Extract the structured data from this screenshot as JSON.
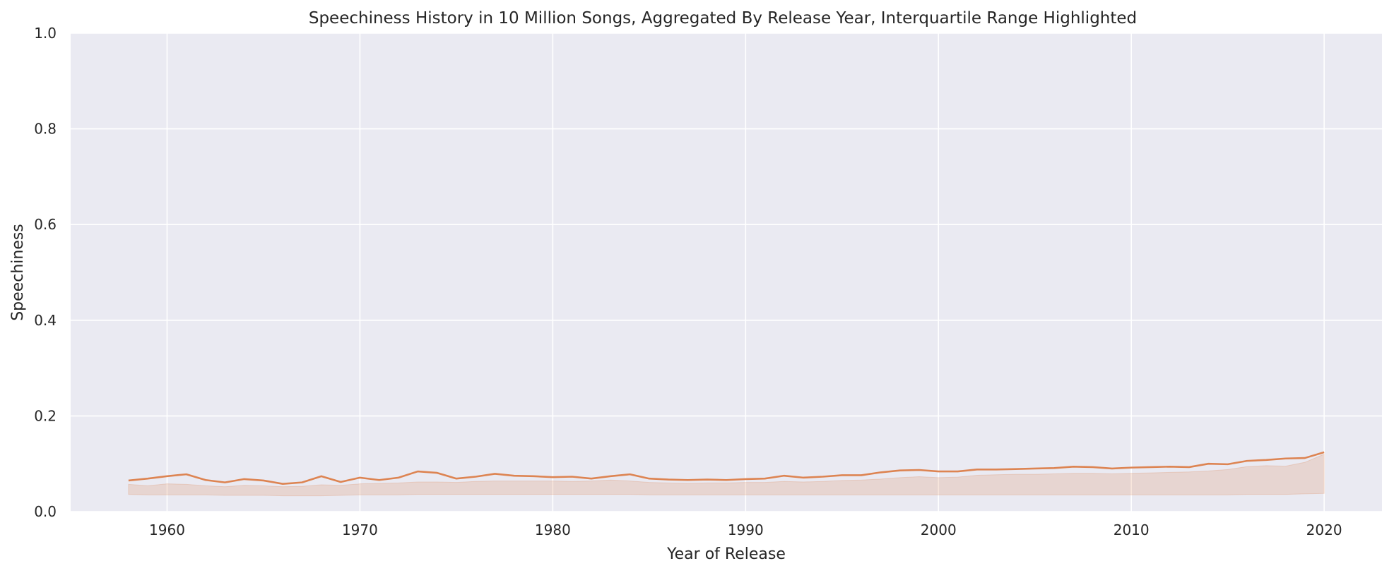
{
  "chart_data": {
    "type": "line",
    "title": "Speechiness History in 10 Million Songs, Aggregated By Release Year, Interquartile Range Highlighted",
    "xlabel": "Year of Release",
    "ylabel": "Speechiness",
    "xlim": [
      1955,
      2023
    ],
    "ylim": [
      0,
      1.0
    ],
    "xticks": [
      1960,
      1970,
      1980,
      1990,
      2000,
      2010,
      2020
    ],
    "xtick_labels": [
      "1960",
      "1970",
      "1980",
      "1990",
      "2000",
      "2010",
      "2020"
    ],
    "yticks": [
      0,
      0.2,
      0.4,
      0.6,
      0.8,
      1.0
    ],
    "ytick_labels": [
      "0.0",
      "0.2",
      "0.4",
      "0.6",
      "0.8",
      "1.0"
    ],
    "grid": true,
    "legend": "none",
    "colors": {
      "background": "#eaeaf2",
      "grid": "#ffffff",
      "line": "#dd8452",
      "band": "#dd8452"
    },
    "series": [
      {
        "x": [
          1958,
          1959,
          1960,
          1961,
          1962,
          1963,
          1964,
          1965,
          1966,
          1967,
          1968,
          1969,
          1970,
          1971,
          1972,
          1973,
          1974,
          1975,
          1976,
          1977,
          1978,
          1979,
          1980,
          1981,
          1982,
          1983,
          1984,
          1985,
          1986,
          1987,
          1988,
          1989,
          1990,
          1991,
          1992,
          1993,
          1994,
          1995,
          1996,
          1997,
          1998,
          1999,
          2000,
          2001,
          2002,
          2003,
          2004,
          2005,
          2006,
          2007,
          2008,
          2009,
          2010,
          2011,
          2012,
          2013,
          2014,
          2015,
          2016,
          2017,
          2018,
          2019,
          2020
        ],
        "mean": [
          0.065,
          0.069,
          0.074,
          0.078,
          0.066,
          0.061,
          0.068,
          0.065,
          0.058,
          0.061,
          0.074,
          0.062,
          0.071,
          0.066,
          0.071,
          0.084,
          0.081,
          0.069,
          0.073,
          0.079,
          0.075,
          0.074,
          0.072,
          0.073,
          0.069,
          0.074,
          0.078,
          0.069,
          0.067,
          0.066,
          0.067,
          0.066,
          0.068,
          0.069,
          0.075,
          0.071,
          0.073,
          0.076,
          0.076,
          0.082,
          0.086,
          0.087,
          0.084,
          0.084,
          0.088,
          0.088,
          0.089,
          0.09,
          0.091,
          0.094,
          0.093,
          0.09,
          0.092,
          0.093,
          0.094,
          0.093,
          0.1,
          0.099,
          0.106,
          0.108,
          0.111,
          0.112,
          0.124
        ],
        "q3": [
          0.057,
          0.054,
          0.058,
          0.057,
          0.054,
          0.052,
          0.055,
          0.054,
          0.052,
          0.053,
          0.056,
          0.055,
          0.058,
          0.059,
          0.06,
          0.062,
          0.062,
          0.061,
          0.063,
          0.064,
          0.064,
          0.064,
          0.064,
          0.063,
          0.064,
          0.066,
          0.064,
          0.061,
          0.06,
          0.059,
          0.06,
          0.06,
          0.061,
          0.061,
          0.063,
          0.062,
          0.063,
          0.065,
          0.066,
          0.068,
          0.071,
          0.073,
          0.071,
          0.072,
          0.076,
          0.077,
          0.078,
          0.078,
          0.079,
          0.08,
          0.08,
          0.079,
          0.08,
          0.081,
          0.082,
          0.083,
          0.085,
          0.088,
          0.094,
          0.096,
          0.095,
          0.103,
          0.12
        ],
        "q1": [
          0.036,
          0.035,
          0.035,
          0.035,
          0.035,
          0.034,
          0.034,
          0.034,
          0.033,
          0.033,
          0.033,
          0.034,
          0.035,
          0.035,
          0.035,
          0.036,
          0.036,
          0.036,
          0.036,
          0.036,
          0.036,
          0.036,
          0.036,
          0.036,
          0.036,
          0.036,
          0.036,
          0.035,
          0.035,
          0.035,
          0.035,
          0.035,
          0.035,
          0.035,
          0.035,
          0.035,
          0.035,
          0.035,
          0.035,
          0.035,
          0.035,
          0.035,
          0.035,
          0.035,
          0.035,
          0.035,
          0.035,
          0.035,
          0.035,
          0.035,
          0.035,
          0.035,
          0.035,
          0.035,
          0.035,
          0.035,
          0.035,
          0.035,
          0.036,
          0.036,
          0.036,
          0.037,
          0.038
        ]
      }
    ]
  }
}
